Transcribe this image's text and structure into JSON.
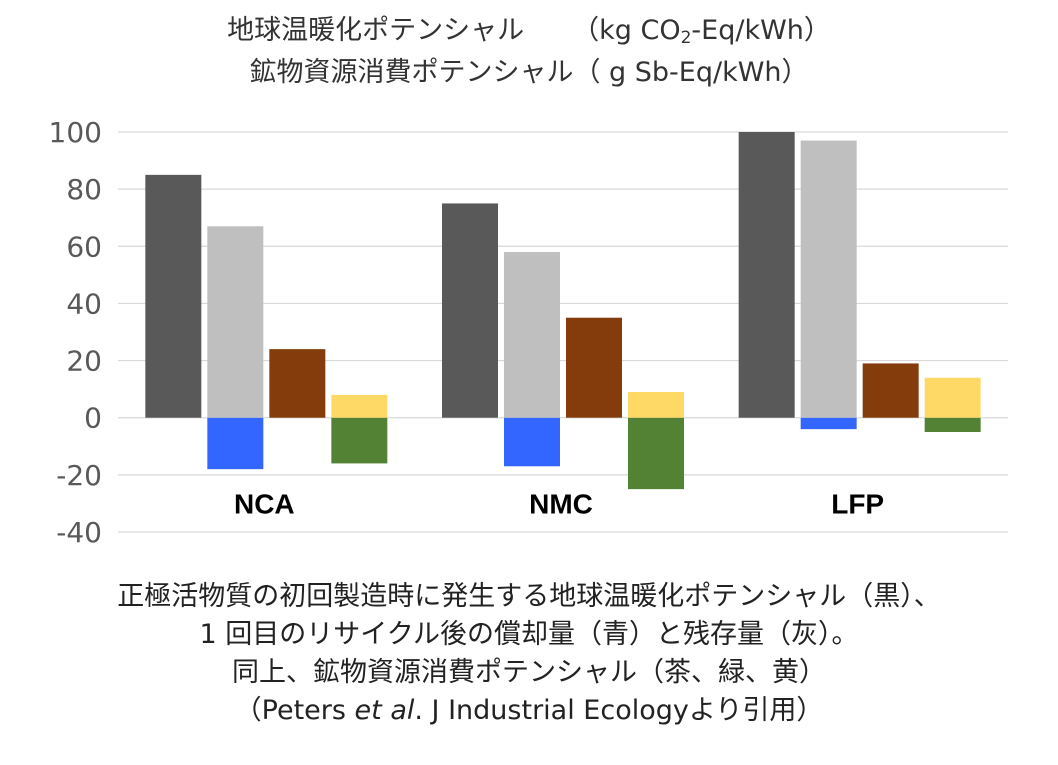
{
  "title": {
    "line1_main": "地球温暖化ポテンシャル",
    "line1_unit_pre": "（kg CO",
    "line1_unit_sub": "2",
    "line1_unit_post": "-Eq/kWh）",
    "line2": "鉱物資源消費ポテンシャル（ g Sb-Eq/kWh）"
  },
  "caption": {
    "line1": "正極活物質の初回製造時に発生する地球温暖化ポテンシャル（黒）、",
    "line2": "1 回目のリサイクル後の償却量（青）と残存量（灰）。",
    "line3": "同上、鉱物資源消費ポテンシャル（茶、緑、黄）",
    "line4_pre": "（Peters ",
    "line4_em": "et al",
    "line4_post": ". J Industrial Ecologyより引用）"
  },
  "chart_data": {
    "type": "bar",
    "categories": [
      "NCA",
      "NMC",
      "LFP"
    ],
    "ylim": [
      -40,
      100
    ],
    "yticks": [
      "100",
      "80",
      "60",
      "40",
      "20",
      "0",
      "-20",
      "-40"
    ],
    "ytick_values": [
      100,
      80,
      60,
      40,
      20,
      0,
      -20,
      -40
    ],
    "grid": true,
    "legend": "none",
    "series": [
      {
        "key": "gwp_initial",
        "color": "#595959",
        "stack": 0,
        "values": [
          85,
          75,
          100
        ]
      },
      {
        "key": "gwp_credit",
        "color": "#3366ff",
        "stack": 1,
        "values": [
          -18,
          -17,
          -4
        ]
      },
      {
        "key": "gwp_residual",
        "color": "#bfbfbf",
        "stack": 1,
        "values": [
          67,
          58,
          97
        ]
      },
      {
        "key": "mrp_initial",
        "color": "#843c0c",
        "stack": 2,
        "values": [
          24,
          35,
          19
        ]
      },
      {
        "key": "mrp_credit",
        "color": "#548235",
        "stack": 3,
        "values": [
          -16,
          -25,
          -5
        ]
      },
      {
        "key": "mrp_residual",
        "color": "#ffd966",
        "stack": 3,
        "values": [
          8,
          9,
          14
        ]
      }
    ]
  }
}
